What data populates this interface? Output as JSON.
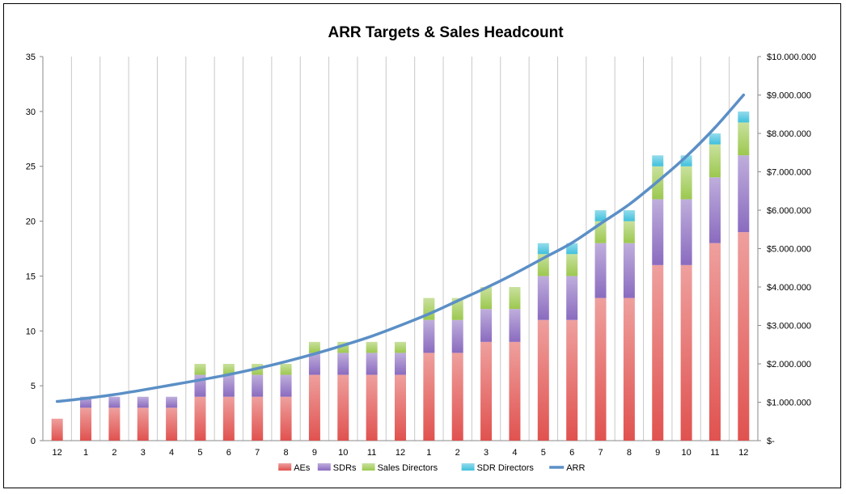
{
  "chart_data": {
    "type": "bar",
    "stacked": true,
    "title": "ARR Targets & Sales Headcount",
    "categories": [
      "12",
      "1",
      "2",
      "3",
      "4",
      "5",
      "6",
      "7",
      "8",
      "9",
      "10",
      "11",
      "12",
      "1",
      "2",
      "3",
      "4",
      "5",
      "6",
      "7",
      "8",
      "9",
      "10",
      "11",
      "12"
    ],
    "y_left": {
      "ylim": [
        0,
        35
      ],
      "ticks": [
        0,
        5,
        10,
        15,
        20,
        25,
        30,
        35
      ]
    },
    "y_right": {
      "ylim": [
        0,
        10000000
      ],
      "ticks": [
        0,
        1000000,
        2000000,
        3000000,
        4000000,
        5000000,
        6000000,
        7000000,
        8000000,
        9000000,
        10000000
      ],
      "tick_labels": [
        "$-",
        "$1.000.000",
        "$2.000.000",
        "$3.000.000",
        "$4.000.000",
        "$5.000.000",
        "$6.000.000",
        "$7.000.000",
        "$8.000.000",
        "$9.000.000",
        "$10.000.000"
      ]
    },
    "series": [
      {
        "name": "AEs",
        "type": "bar",
        "axis": "left",
        "color": "#e0524f",
        "values": [
          2,
          3,
          3,
          3,
          3,
          4,
          4,
          4,
          4,
          6,
          6,
          6,
          6,
          8,
          8,
          9,
          9,
          11,
          11,
          13,
          13,
          16,
          16,
          18,
          19
        ]
      },
      {
        "name": "SDRs",
        "type": "bar",
        "axis": "left",
        "color": "#8a6bbf",
        "values": [
          0,
          1,
          1,
          1,
          1,
          2,
          2,
          2,
          2,
          2,
          2,
          2,
          2,
          3,
          3,
          3,
          3,
          4,
          4,
          5,
          5,
          6,
          6,
          6,
          7
        ]
      },
      {
        "name": "Sales Directors",
        "type": "bar",
        "axis": "left",
        "color": "#9cc84f",
        "values": [
          0,
          0,
          0,
          0,
          0,
          1,
          1,
          1,
          1,
          1,
          1,
          1,
          1,
          2,
          2,
          2,
          2,
          2,
          2,
          2,
          2,
          3,
          3,
          3,
          3
        ]
      },
      {
        "name": "SDR Directors",
        "type": "bar",
        "axis": "left",
        "color": "#3fc0dc",
        "values": [
          0,
          0,
          0,
          0,
          0,
          0,
          0,
          0,
          0,
          0,
          0,
          0,
          0,
          0,
          0,
          0,
          0,
          1,
          1,
          1,
          1,
          1,
          1,
          1,
          1
        ]
      },
      {
        "name": "ARR",
        "type": "line",
        "axis": "right",
        "color": "#5b8fc6",
        "values": [
          1020000,
          1100000,
          1200000,
          1320000,
          1450000,
          1580000,
          1720000,
          1880000,
          2060000,
          2260000,
          2480000,
          2720000,
          3000000,
          3300000,
          3640000,
          3980000,
          4350000,
          4750000,
          5150000,
          5650000,
          6150000,
          6750000,
          7400000,
          8150000,
          9000000
        ]
      }
    ],
    "legend": {
      "placement": "bottom",
      "entries": [
        "AEs",
        "SDRs",
        "Sales Directors",
        "SDR Directors",
        "ARR"
      ]
    },
    "grid": {
      "vertical": true,
      "horizontal": false
    }
  }
}
